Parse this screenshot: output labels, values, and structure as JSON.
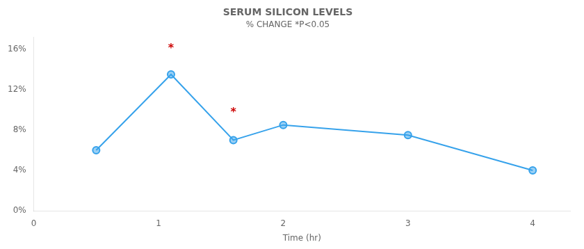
{
  "chart_data": {
    "type": "line",
    "title": "SERUM SILICON LEVELS",
    "subtitle": "% CHANGE *P<0.05",
    "xlabel": "Time (hr)",
    "x": [
      0.5,
      1.1,
      1.6,
      2.0,
      3.0,
      4.0
    ],
    "values": [
      0.06,
      0.135,
      0.07,
      0.085,
      0.075,
      0.04
    ],
    "xlim": [
      0,
      4.3
    ],
    "ylim": [
      0,
      0.172
    ],
    "xticks": [
      0,
      1,
      2,
      3,
      4
    ],
    "yticks": [
      {
        "value": 0,
        "label": "0%"
      },
      {
        "value": 0.04,
        "label": "4%"
      },
      {
        "value": 0.08,
        "label": "8%"
      },
      {
        "value": 0.12,
        "label": "12%"
      },
      {
        "value": 0.16,
        "label": "16%"
      }
    ],
    "grid": false,
    "marker": "circle",
    "line_style": "solid",
    "annotations": [
      {
        "x": 1.1,
        "y": 0.155,
        "text": "*",
        "color": "#cc0000"
      },
      {
        "x": 1.6,
        "y": 0.092,
        "text": "*",
        "color": "#cc0000"
      }
    ]
  }
}
